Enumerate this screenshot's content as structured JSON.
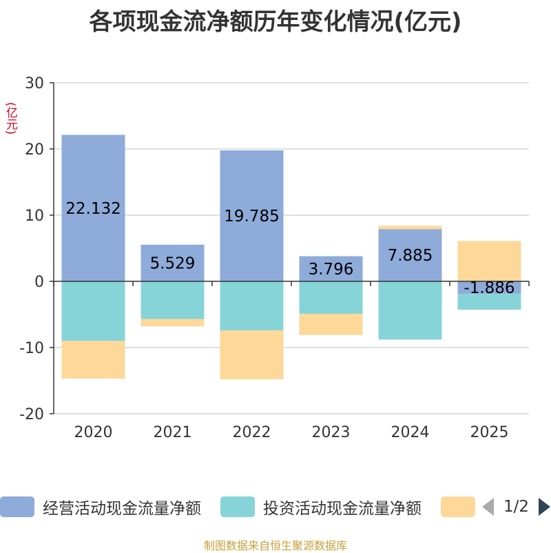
{
  "title": "各项现金流净额历年变化情况(亿元)",
  "unit_label": "(亿元)",
  "source": "制图数据来自恒生聚源数据库",
  "legend": {
    "items": [
      {
        "label": "经营活动现金流量净额",
        "color": "#8eabd9"
      },
      {
        "label": "投资活动现金流量净额",
        "color": "#86d4d8"
      },
      {
        "label": "",
        "color": "#fdd899"
      }
    ],
    "page": "1/2"
  },
  "chart_data": {
    "type": "bar",
    "stacked": true,
    "title": "各项现金流净额历年变化情况(亿元)",
    "ylabel": "(亿元)",
    "ylim": [
      -20,
      30
    ],
    "yticks": [
      -20,
      -10,
      0,
      10,
      20,
      30
    ],
    "categories": [
      "2020",
      "2021",
      "2022",
      "2023",
      "2024",
      "2025"
    ],
    "series": [
      {
        "name": "经营活动现金流量净额",
        "color": "#8eabd9",
        "values": [
          22.132,
          5.529,
          19.785,
          3.796,
          7.885,
          -1.886
        ],
        "labels": [
          "22.132",
          "5.529",
          "19.785",
          "3.796",
          "7.885",
          "-1.886"
        ]
      },
      {
        "name": "投资活动现金流量净额",
        "color": "#86d4d8",
        "values": [
          -9.0,
          -5.7,
          -7.4,
          -4.9,
          -8.8,
          -2.4
        ]
      },
      {
        "name": "",
        "color": "#fdd899",
        "values": [
          -5.7,
          -1.1,
          -7.4,
          -3.2,
          0.5,
          6.1
        ]
      }
    ]
  }
}
